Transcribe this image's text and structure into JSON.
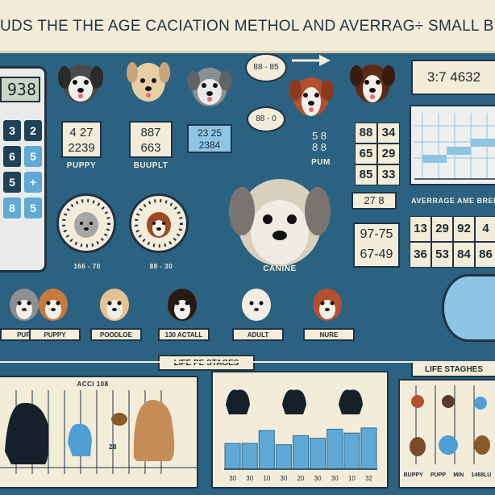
{
  "header": {
    "title": "UDS THE THE AGE CACIATION METHOL AND AVERRAG÷ SMALL BREED DO"
  },
  "calculator": {
    "display": "938",
    "keys": [
      {
        "label": "3",
        "tone": "dark"
      },
      {
        "label": "2",
        "tone": "dark"
      },
      {
        "label": "6",
        "tone": "dark"
      },
      {
        "label": "5",
        "tone": "light"
      },
      {
        "label": "5",
        "tone": "dark"
      },
      {
        "label": "+",
        "tone": "light"
      },
      {
        "label": "8",
        "tone": "light"
      },
      {
        "label": "5",
        "tone": "light"
      }
    ]
  },
  "cards": {
    "puppy_numbers": "4 27\n2239",
    "puppy_label": "PUPPY",
    "buuplt_numbers": "887\n663",
    "buuplt_label": "BUUPLT",
    "blue_numbers": "23 25\n2384",
    "top_oval": "88 - 85",
    "mid_oval": "88 - 0",
    "pum_numbers": "5 8\n8 8",
    "pum_label": "PUM",
    "top_right_numbers": "3:7   4632"
  },
  "clocks": {
    "left_label": "166 - 70",
    "right_label": "88 - 30"
  },
  "center": {
    "label": "CANINE"
  },
  "mid_grid": {
    "rows": [
      [
        "88",
        "34"
      ],
      [
        "65",
        "29"
      ],
      [
        "85",
        "33"
      ]
    ]
  },
  "right_grid": {
    "header": "27 8",
    "header2": "AVERRAGE AME BREEI",
    "rows": [
      [
        "13",
        "29",
        "92",
        "4"
      ],
      [
        "36",
        "53",
        "84",
        "86"
      ]
    ]
  },
  "range_card": {
    "rows": [
      "97-75",
      "67-49"
    ]
  },
  "stage_labels": [
    "PUPY",
    "PUPPY",
    "POODLOE",
    "130 ACTALL",
    "ADULT",
    "NURE"
  ],
  "bottom": {
    "banner_left": "LIFE PE STAGES",
    "banner_right": "LIFE STAGHES",
    "left_panel_caption": "ACCI 108",
    "left_panel_tick": "28",
    "center_ticks": [
      "30",
      "30",
      "10",
      "30",
      "20",
      "30",
      "30",
      "10",
      "32"
    ],
    "right_labels": [
      "BUPPY",
      "PUPP",
      "MIN",
      "1468LU"
    ]
  },
  "chart_data": {
    "type": "bar",
    "categories": [
      "30",
      "30",
      "10",
      "30",
      "20",
      "30",
      "30",
      "10",
      "32"
    ],
    "values": [
      40,
      40,
      60,
      38,
      52,
      48,
      62,
      56,
      64
    ],
    "ylim": [
      0,
      100
    ]
  },
  "colors": {
    "background": "#2b6282",
    "paper": "#f3ecd9",
    "accent": "#5fa9d6",
    "ink": "#1f3344"
  }
}
